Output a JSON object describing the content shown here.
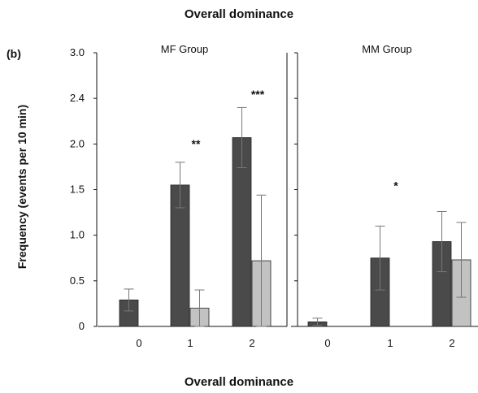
{
  "figure": {
    "top_title": "Overall dominance",
    "bottom_title": "Overall dominance",
    "panel_label": "(b)",
    "ylabel": "Frequency (events per 10 min)"
  },
  "chart_data": [
    {
      "type": "bar",
      "title": "MF Group",
      "xlabel": "Overall dominance",
      "ylabel": "Frequency (events per 10 min)",
      "ylim": [
        0,
        3.0
      ],
      "yticks": [
        "0",
        "0.5",
        "1.0",
        "1.5",
        "2.0",
        "2.4",
        "3.0"
      ],
      "categories": [
        "0",
        "1",
        "2"
      ],
      "series": [
        {
          "color": "#4a4a4a",
          "values": [
            0.29,
            1.55,
            2.07
          ],
          "errors": [
            0.12,
            0.25,
            0.33
          ]
        },
        {
          "color": "#c2c2c2",
          "values": [
            0.0,
            0.2,
            0.72
          ],
          "errors": [
            0.0,
            0.2,
            0.72
          ]
        }
      ],
      "annotations": [
        {
          "category": "1",
          "text": "**",
          "y": 1.96
        },
        {
          "category": "2",
          "text": "***",
          "y": 2.5
        }
      ]
    },
    {
      "type": "bar",
      "title": "MM Group",
      "xlabel": "Overall dominance",
      "ylim": [
        0,
        3.0
      ],
      "categories": [
        "0",
        "1",
        "2"
      ],
      "series": [
        {
          "color": "#4a4a4a",
          "values": [
            0.05,
            0.75,
            0.93
          ],
          "errors": [
            0.04,
            0.35,
            0.33
          ]
        },
        {
          "color": "#c2c2c2",
          "values": [
            0.0,
            0.0,
            0.73
          ],
          "errors": [
            0.0,
            0.0,
            0.41
          ]
        }
      ],
      "annotations": [
        {
          "category": "1",
          "text": "*",
          "y": 1.5
        }
      ]
    }
  ]
}
